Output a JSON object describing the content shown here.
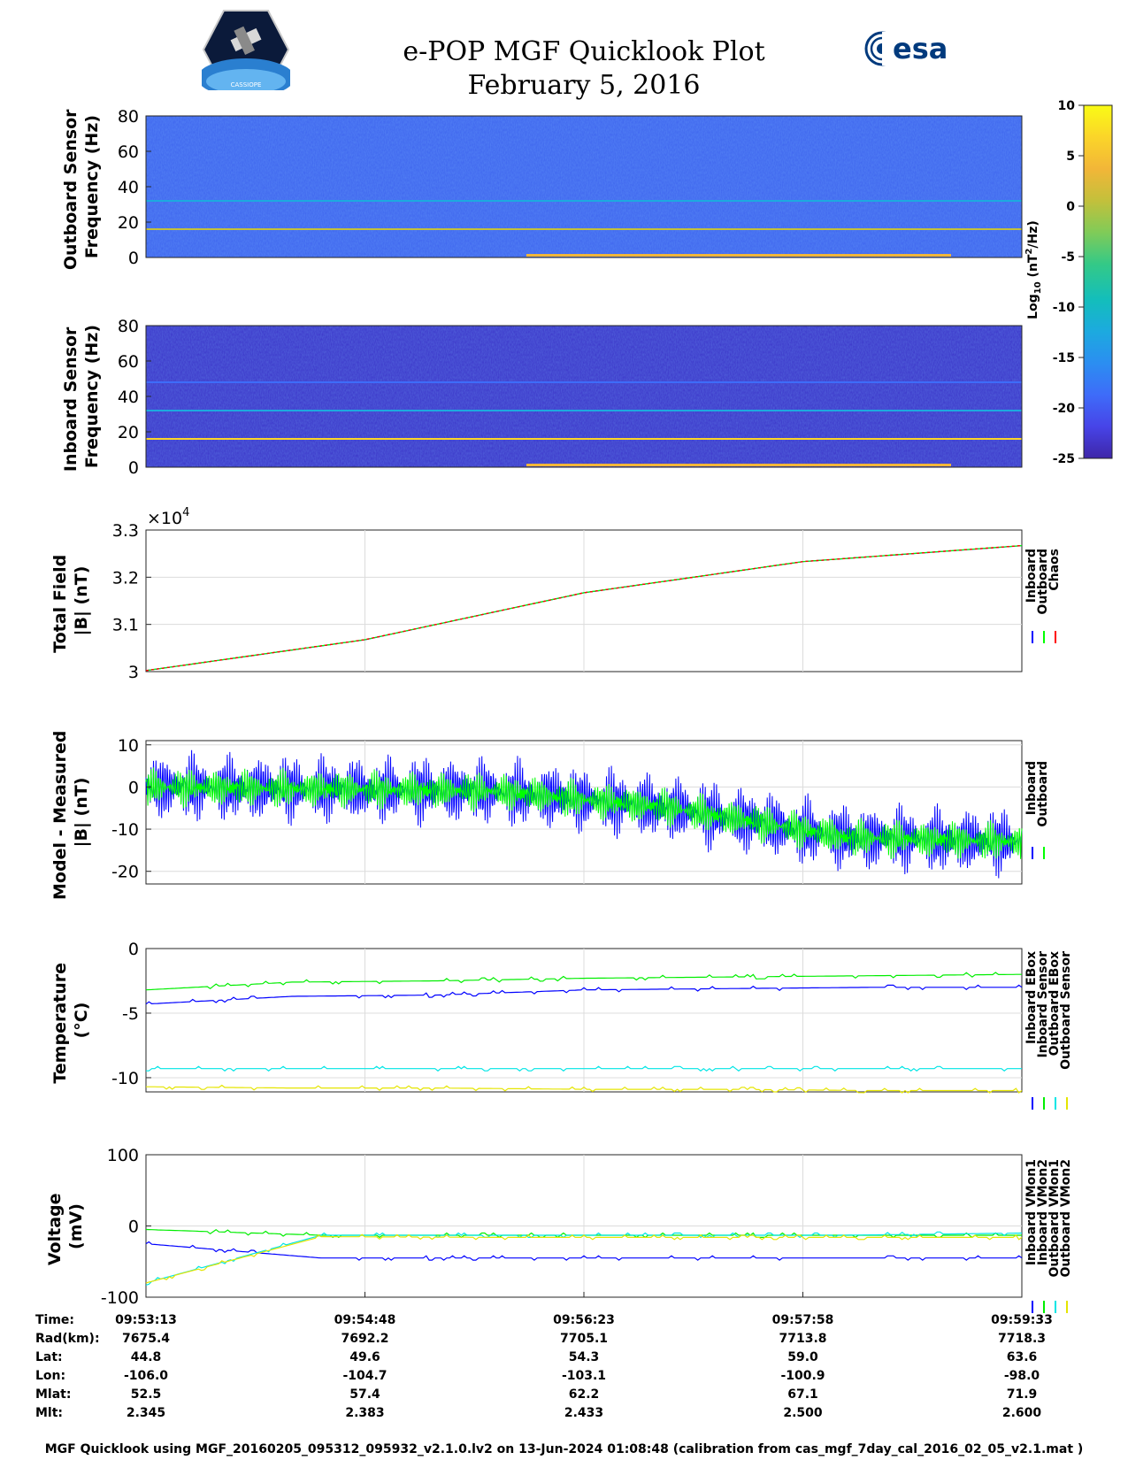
{
  "header": {
    "title": "e-POP MGF Quicklook Plot",
    "date": "February 5, 2016",
    "cassiope_logo_text": "CASSIOPE",
    "esa_logo_text": "esa"
  },
  "colorbar": {
    "label": "Log10 (nT2/Hz)",
    "label_main": "Log",
    "label_sub": "10",
    "label_rest": " (nT",
    "label_sup": "2",
    "label_end": "/Hz)",
    "ticks": [
      "10",
      "5",
      "0",
      "-5",
      "-10",
      "-15",
      "-20",
      "-25"
    ],
    "range": [
      -25,
      10
    ],
    "colors": [
      "#3e26a8",
      "#4744e8",
      "#3e6cf9",
      "#2b8ef1",
      "#1caadf",
      "#13bebb",
      "#34c987",
      "#80cb58",
      "#c3c03b",
      "#f2b638",
      "#fbd529",
      "#f9fb15"
    ]
  },
  "time_axis": {
    "ticks": [
      "09:53:13",
      "09:54:48",
      "09:56:23",
      "09:57:58",
      "09:59:33"
    ]
  },
  "info_rows": [
    {
      "label": "Time:",
      "values": [
        "09:53:13",
        "09:54:48",
        "09:56:23",
        "09:57:58",
        "09:59:33"
      ]
    },
    {
      "label": "Rad(km):",
      "values": [
        "7675.4",
        "7692.2",
        "7705.1",
        "7713.8",
        "7718.3"
      ]
    },
    {
      "label": "Lat:",
      "values": [
        "44.8",
        "49.6",
        "54.3",
        "59.0",
        "63.6"
      ]
    },
    {
      "label": "Lon:",
      "values": [
        "-106.0",
        "-104.7",
        "-103.1",
        "-100.9",
        "-98.0"
      ]
    },
    {
      "label": "Mlat:",
      "values": [
        "52.5",
        "57.4",
        "62.2",
        "67.1",
        "71.9"
      ]
    },
    {
      "label": "Mlt:",
      "values": [
        "2.345",
        "2.383",
        "2.433",
        "2.500",
        "2.600"
      ]
    }
  ],
  "footer": "MGF Quicklook using MGF_20160205_095312_095932_v2.1.0.lv2 on 13-Jun-2024 01:08:48 (calibration from cas_mgf_7day_cal_2016_02_05_v2.1.mat )",
  "chart_data": [
    {
      "type": "heatmap",
      "ylabel_lines": [
        "Outboard Sensor",
        "Frequency (Hz)"
      ],
      "ylim": [
        0,
        80
      ],
      "yticks": [
        "80",
        "60",
        "40",
        "20",
        "0"
      ],
      "background_log10": -19,
      "spectral_lines_hz": [
        16,
        32
      ],
      "spectral_line_levels": [
        2,
        -11
      ],
      "low_freq_enhancement_level": 3
    },
    {
      "type": "heatmap",
      "ylabel_lines": [
        "Inboard Sensor",
        "Frequency (Hz)"
      ],
      "ylim": [
        0,
        80
      ],
      "yticks": [
        "80",
        "60",
        "40",
        "20",
        "0"
      ],
      "background_log10": -23,
      "spectral_lines_hz": [
        16,
        32,
        48
      ],
      "spectral_line_levels": [
        6,
        -11,
        -18
      ],
      "low_freq_enhancement_level": 3
    },
    {
      "type": "line",
      "ylabel_lines": [
        "Total Field",
        "|B| (nT)"
      ],
      "exponent_label": "×10",
      "exponent_power": "4",
      "ylim": [
        3.0,
        3.3
      ],
      "yticks": [
        "3.3",
        "3.2",
        "3.1",
        "3"
      ],
      "x": [
        0,
        0.25,
        0.5,
        0.75,
        1.0
      ],
      "series": [
        {
          "name": "Inboard",
          "color": "#0000ff",
          "values": [
            3.0022,
            3.0675,
            3.167,
            3.233,
            3.2669
          ]
        },
        {
          "name": "Outboard",
          "color": "#00ff00",
          "values": [
            3.0022,
            3.0676,
            3.1671,
            3.2331,
            3.267
          ]
        },
        {
          "name": "Chaos",
          "color": "#ff0000",
          "values": [
            3.0022,
            3.0676,
            3.167,
            3.233,
            3.267
          ]
        }
      ]
    },
    {
      "type": "line",
      "ylabel_lines": [
        "Model - Measured",
        "|B| (nT)"
      ],
      "ylim": [
        -23,
        11
      ],
      "yticks": [
        "10",
        "0",
        "-10",
        "-20"
      ],
      "series": [
        {
          "name": "Inboard",
          "color": "#0000ff",
          "trend": [
            [
              0,
              0
            ],
            [
              0.4,
              -1
            ],
            [
              0.6,
              -5
            ],
            [
              0.8,
              -12
            ],
            [
              1.0,
              -13
            ]
          ],
          "amplitude": 9
        },
        {
          "name": "Outboard",
          "color": "#00ff00",
          "trend": [
            [
              0,
              0
            ],
            [
              0.4,
              -1
            ],
            [
              0.6,
              -5
            ],
            [
              0.8,
              -12
            ],
            [
              1.0,
              -13
            ]
          ],
          "amplitude": 5
        }
      ]
    },
    {
      "type": "line",
      "ylabel_lines": [
        "Temperature",
        "(°C)"
      ],
      "ylim": [
        -11.1,
        0
      ],
      "yticks": [
        "0",
        "-5",
        "-10"
      ],
      "series": [
        {
          "name": "Inboard EBox",
          "color": "#0000ff",
          "values": [
            -4.3,
            -3.7,
            -3.6,
            -3.2,
            -3.1,
            -3.0,
            -3.0
          ]
        },
        {
          "name": "Inboard Sensor",
          "color": "#00ee00",
          "values": [
            -3.2,
            -2.6,
            -2.5,
            -2.3,
            -2.2,
            -2.1,
            -2.0
          ]
        },
        {
          "name": "Outboard EBox",
          "color": "#00e5e5",
          "values": [
            -9.3,
            -9.3,
            -9.3,
            -9.3,
            -9.3,
            -9.3,
            -9.3
          ]
        },
        {
          "name": "Outboard Sensor",
          "color": "#e5e500",
          "values": [
            -10.7,
            -10.8,
            -10.8,
            -10.9,
            -10.9,
            -11.0,
            -11.0
          ]
        }
      ]
    },
    {
      "type": "line",
      "ylabel_lines": [
        "Voltage",
        "(mV)"
      ],
      "ylim": [
        -100,
        100
      ],
      "yticks": [
        "100",
        "0",
        "-100"
      ],
      "series": [
        {
          "name": "Inboard VMon1",
          "color": "#0000ff",
          "values": [
            -25,
            -45,
            -45,
            -45,
            -45,
            -45
          ]
        },
        {
          "name": "Inboard VMon2",
          "color": "#00ee00",
          "values": [
            -5,
            -13,
            -13,
            -13,
            -13,
            -13
          ]
        },
        {
          "name": "Outboard VMon1",
          "color": "#00e5e5",
          "values": [
            -80,
            -13,
            -13,
            -13,
            -13,
            -10
          ]
        },
        {
          "name": "Outboard VMon2",
          "color": "#e5e500",
          "values": [
            -80,
            -15,
            -16,
            -16,
            -16,
            -16
          ]
        }
      ]
    }
  ]
}
